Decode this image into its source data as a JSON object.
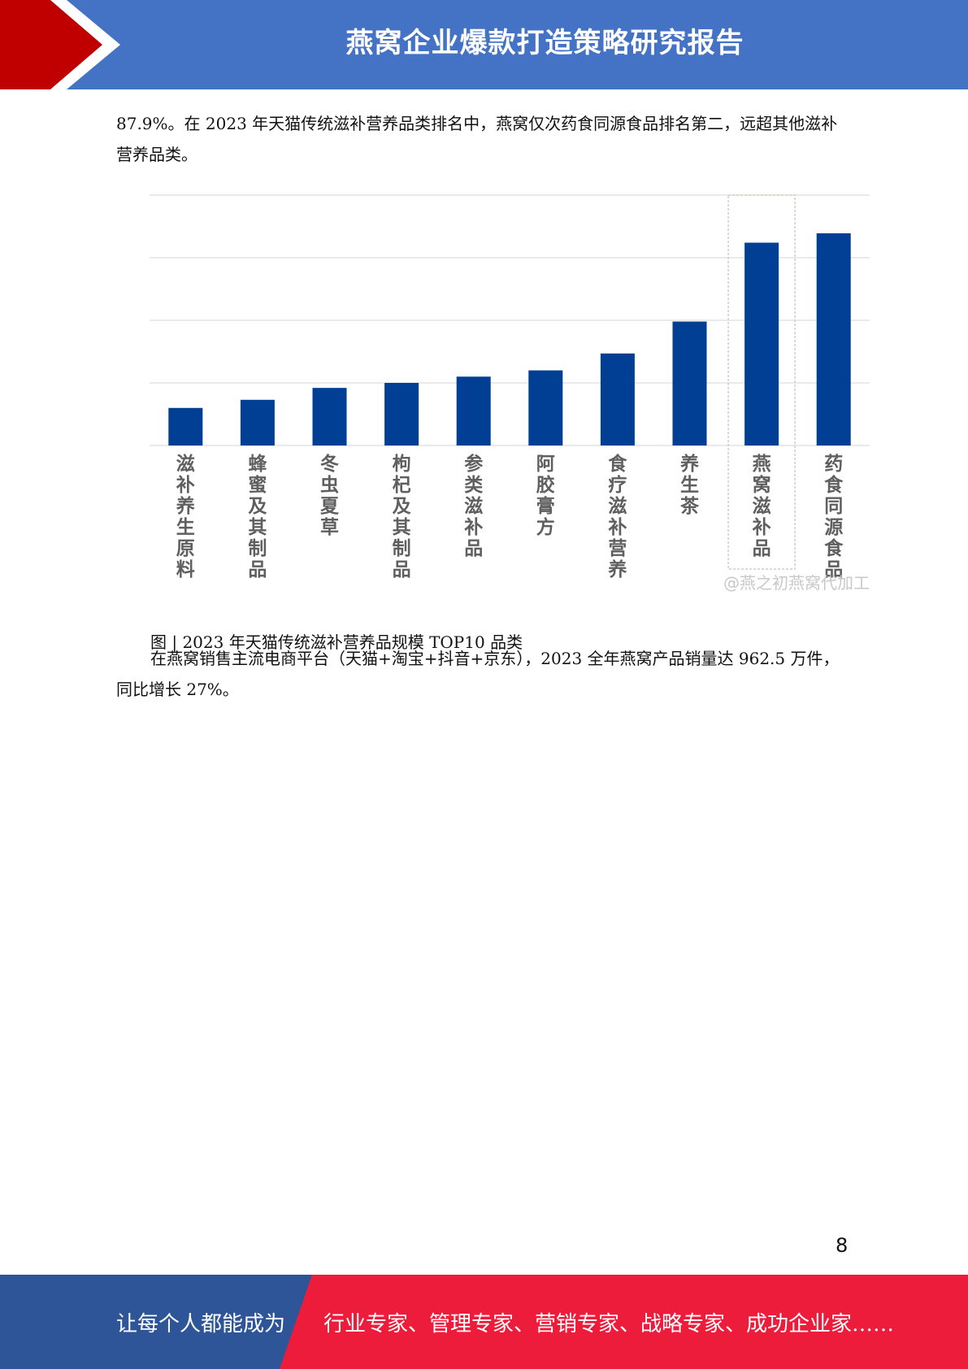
{
  "header": {
    "title": "燕窝企业爆款打造策略研究报告"
  },
  "body": {
    "p1": "87.9%。在 2023 年天猫传统滋补营养品类排名中，燕窝仅次药食同源食品排名第二，远超其他滋补营养品类。",
    "caption": "图 | 2023 年天猫传统滋补营养品规模 TOP10 品类",
    "p2": "在燕窝销售主流电商平台（天猫+淘宝+抖音+京东），2023 全年燕窝产品销量达 962.5 万件，同比增长 27%。"
  },
  "chart_data": {
    "type": "bar",
    "categories": [
      "滋补养生原料",
      "蜂蜜及其制品",
      "冬虫夏草",
      "枸杞及其制品",
      "参类滋补品",
      "阿胶膏方",
      "食疗滋补营养",
      "养生茶",
      "燕窝滋补品",
      "药食同源食品"
    ],
    "values": [
      0.6,
      0.73,
      0.92,
      1.0,
      1.1,
      1.2,
      1.47,
      1.98,
      3.24,
      3.39
    ],
    "ylim": [
      0,
      4
    ],
    "grid": true,
    "highlight_index": 8,
    "color": "#003f94",
    "watermark": "@燕之初燕窝代加工"
  },
  "page": {
    "number": "8"
  },
  "footer": {
    "slogan_left": "让每个人都能成为",
    "slogan_right": "行业专家、管理专家、营销专家、战略专家、成功企业家……"
  },
  "colors": {
    "header_blue": "#4472c4",
    "accent_red": "#c00000",
    "footer_blue": "#2e5597",
    "footer_red": "#ee1c3b"
  }
}
